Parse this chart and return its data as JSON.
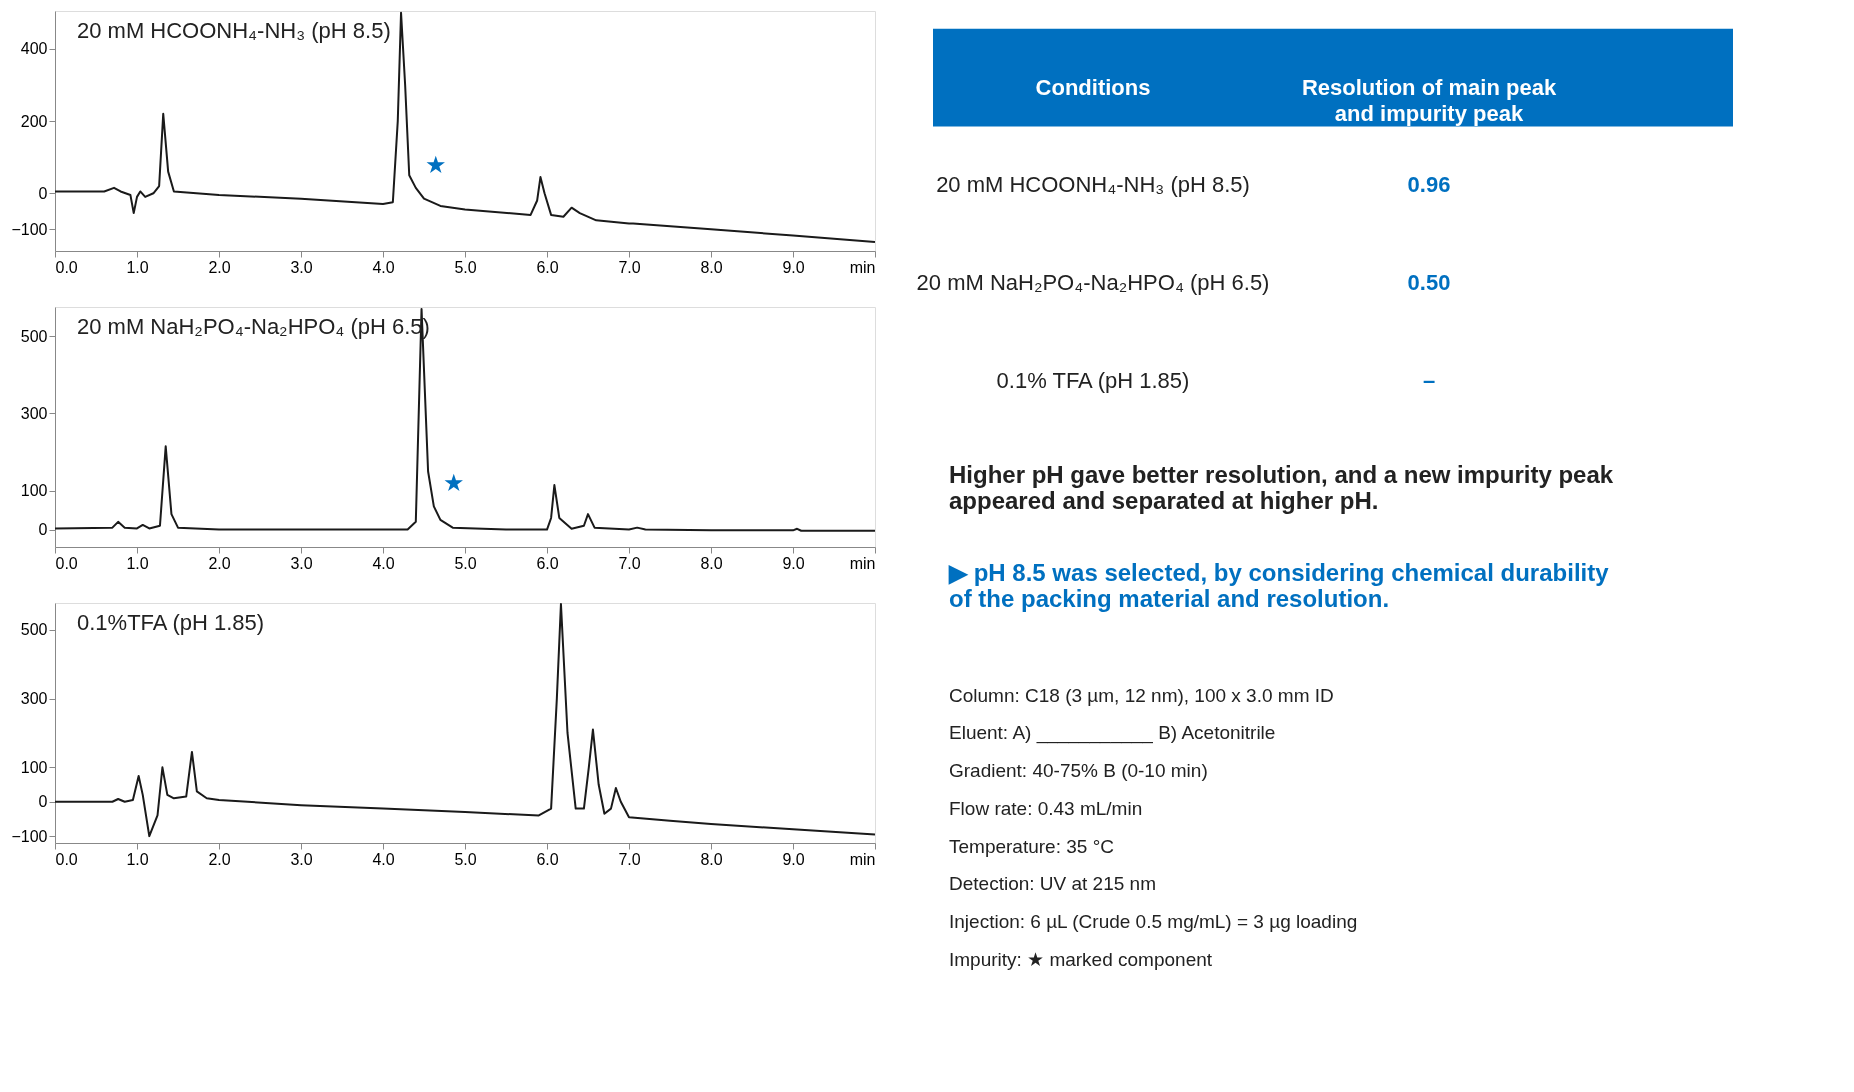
{
  "chart_data": [
    {
      "type": "line",
      "title": "20 mM HCOONH₄-NH₃ (pH 8.5)",
      "xlim": [
        0,
        10
      ],
      "ylim": [
        -160,
        505
      ],
      "xticks": [
        {
          "value": 0,
          "label": "0.0"
        },
        {
          "value": 1,
          "label": "1.0"
        },
        {
          "value": 2,
          "label": "2.0"
        },
        {
          "value": 3,
          "label": "3.0"
        },
        {
          "value": 4,
          "label": "4.0"
        },
        {
          "value": 5,
          "label": "5.0"
        },
        {
          "value": 6,
          "label": "6.0"
        },
        {
          "value": 7,
          "label": "7.0"
        },
        {
          "value": 8,
          "label": "8.0"
        },
        {
          "value": 9,
          "label": "9.0"
        },
        {
          "value": 10,
          "label": "min"
        }
      ],
      "yticks": [
        -100,
        0,
        200,
        400
      ],
      "grid": false,
      "marker": "none",
      "line_style": "solid",
      "series": [
        {
          "color": "#1a1a1a",
          "x": [
            0,
            0.6,
            0.72,
            0.8,
            0.92,
            0.96,
            1.0,
            1.04,
            1.1,
            1.2,
            1.27,
            1.32,
            1.38,
            1.45,
            2.0,
            3.0,
            4.0,
            4.12,
            4.18,
            4.22,
            4.27,
            4.32,
            4.4,
            4.5,
            4.7,
            5.0,
            5.8,
            5.88,
            5.92,
            5.97,
            6.05,
            6.2,
            6.3,
            6.4,
            6.6,
            7.0,
            7.05,
            8.0,
            9.0,
            10.0
          ],
          "values": [
            5,
            5,
            15,
            5,
            -5,
            -55,
            -10,
            5,
            -10,
            0,
            20,
            220,
            60,
            5,
            -5,
            -15,
            -30,
            -25,
            200,
            500,
            300,
            50,
            15,
            -15,
            -35,
            -45,
            -60,
            -20,
            45,
            0,
            -60,
            -65,
            -40,
            -55,
            -75,
            -84,
            -84,
            -100,
            -117,
            -135
          ]
        }
      ],
      "annotations": [
        {
          "text": "★",
          "x": 4.4,
          "y": 15
        }
      ]
    },
    {
      "type": "line",
      "title": "20 mM NaH₂PO₄-Na₂HPO₄ (pH 6.5)",
      "xlim": [
        0,
        10
      ],
      "ylim": [
        -45,
        575
      ],
      "xticks": [
        {
          "value": 0,
          "label": "0.0"
        },
        {
          "value": 1,
          "label": "1.0"
        },
        {
          "value": 2,
          "label": "2.0"
        },
        {
          "value": 3,
          "label": "3.0"
        },
        {
          "value": 4,
          "label": "4.0"
        },
        {
          "value": 5,
          "label": "5.0"
        },
        {
          "value": 6,
          "label": "6.0"
        },
        {
          "value": 7,
          "label": "7.0"
        },
        {
          "value": 8,
          "label": "8.0"
        },
        {
          "value": 9,
          "label": "9.0"
        },
        {
          "value": 10,
          "label": "min"
        }
      ],
      "yticks": [
        0,
        100,
        300,
        500
      ],
      "grid": false,
      "marker": "none",
      "line_style": "solid",
      "series": [
        {
          "color": "#1a1a1a",
          "x": [
            0,
            0.7,
            0.77,
            0.85,
            1.0,
            1.07,
            1.15,
            1.28,
            1.35,
            1.42,
            1.5,
            2.0,
            4.3,
            4.4,
            4.47,
            4.55,
            4.62,
            4.7,
            4.85,
            5.5,
            6.0,
            6.05,
            6.09,
            6.15,
            6.3,
            6.45,
            6.5,
            6.58,
            7.0,
            7.1,
            7.2,
            8.0,
            9.0,
            9.05,
            9.1,
            10.0
          ],
          "values": [
            3,
            5,
            20,
            5,
            3,
            12,
            3,
            10,
            215,
            40,
            5,
            0,
            0,
            20,
            570,
            150,
            60,
            25,
            5,
            0,
            0,
            30,
            115,
            30,
            2,
            10,
            40,
            5,
            0,
            5,
            0,
            -2,
            -2,
            2,
            -3,
            -3
          ]
        }
      ],
      "annotations": [
        {
          "text": "★",
          "x": 4.62,
          "y": 60
        }
      ]
    },
    {
      "type": "line",
      "title": "0.1%TFA (pH 1.85)",
      "xlim": [
        0,
        10
      ],
      "ylim": [
        -120,
        578
      ],
      "xticks": [
        {
          "value": 0,
          "label": "0.0"
        },
        {
          "value": 1,
          "label": "1.0"
        },
        {
          "value": 2,
          "label": "2.0"
        },
        {
          "value": 3,
          "label": "3.0"
        },
        {
          "value": 4,
          "label": "4.0"
        },
        {
          "value": 5,
          "label": "5.0"
        },
        {
          "value": 6,
          "label": "6.0"
        },
        {
          "value": 7,
          "label": "7.0"
        },
        {
          "value": 8,
          "label": "8.0"
        },
        {
          "value": 9,
          "label": "9.0"
        },
        {
          "value": 10,
          "label": "min"
        }
      ],
      "yticks": [
        -100,
        0,
        100,
        300,
        500
      ],
      "grid": false,
      "marker": "none",
      "line_style": "solid",
      "series": [
        {
          "color": "#1a1a1a",
          "x": [
            0,
            0.7,
            0.77,
            0.85,
            0.95,
            1.02,
            1.07,
            1.15,
            1.25,
            1.31,
            1.37,
            1.45,
            1.6,
            1.67,
            1.73,
            1.85,
            2.0,
            3.0,
            4.0,
            5.0,
            5.9,
            6.05,
            6.12,
            6.17,
            6.25,
            6.35,
            6.45,
            6.51,
            6.56,
            6.63,
            6.7,
            6.78,
            6.84,
            6.9,
            7.0,
            7.5,
            8.0,
            9.0,
            10.0
          ],
          "values": [
            0,
            0,
            8,
            0,
            5,
            75,
            20,
            -100,
            -40,
            100,
            20,
            10,
            15,
            145,
            30,
            10,
            5,
            -10,
            -20,
            -30,
            -40,
            -20,
            300,
            575,
            200,
            -20,
            -20,
            100,
            210,
            50,
            -35,
            -20,
            40,
            0,
            -45,
            -55,
            -65,
            -80,
            -95
          ]
        }
      ]
    },
    {
      "type": "other",
      "annotations": [
        "Conditions",
        "Resolution of main peak and impurity peak",
        "20 mM HCOONH₄-NH₃ (pH 8.5)",
        "0.96",
        "20 mM NaH₂PO₄-Na₂HPO₄ (pH 6.5)",
        "0.50",
        "0.1% TFA (pH 1.85)",
        "–",
        "Higher pH gave better resolution, and a new impurity peak appeared and separated at higher pH.",
        "▶ pH 8.5 was selected, by considering chemical durability of the packing material and resolution.",
        "Column: C18 (3 µm, 12 nm), 100 x 3.0 mm ID",
        "Eluent: A) ___________ B) Acetonitrile",
        "Gradient: 40-75% B (0-10 min)",
        "Flow rate: 0.43 mL/min",
        "Temperature: 35 °C",
        "Detection: UV at 215 nm",
        "Injection: 6 µL (Crude 0.5 mg/mL) = 3 µg loading",
        "Impurity: ★ marked component"
      ]
    }
  ]
}
